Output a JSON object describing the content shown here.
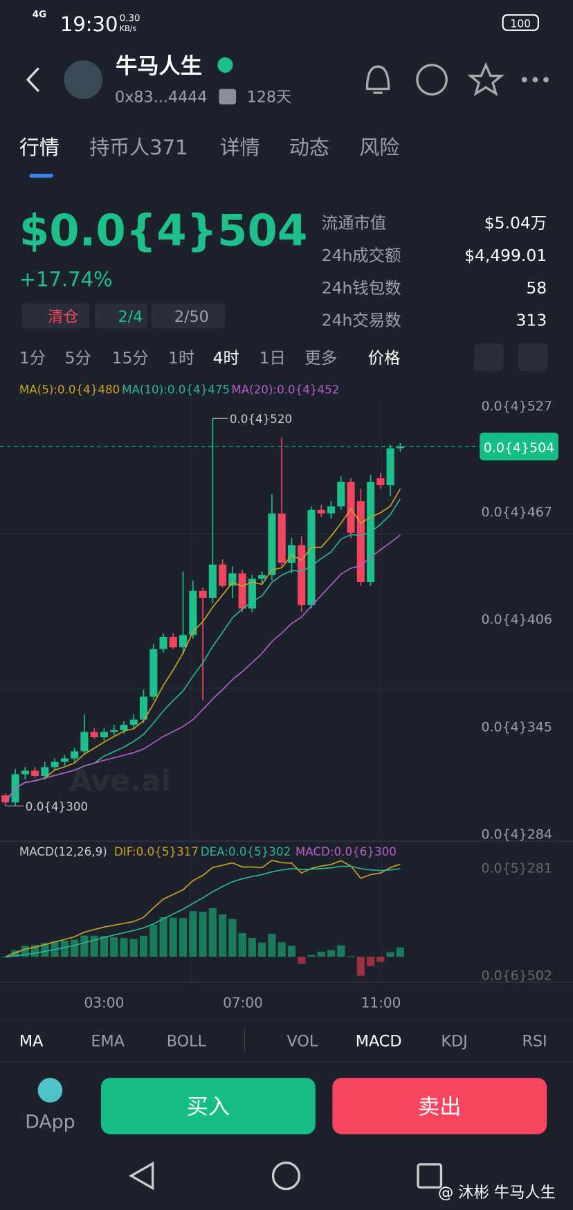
{
  "status_bar": {
    "network": "4G",
    "time": "19:30",
    "speed": "0.30",
    "speed_unit": "KB/s",
    "battery": "100"
  },
  "header": {
    "title": "牛马人生",
    "address": "0x83...4444",
    "age": "128天"
  },
  "tabs": [
    "行情",
    "持币人371",
    "详情",
    "动态",
    "风险"
  ],
  "price": {
    "value": "$0.0{4}504",
    "change": "+17.74%"
  },
  "badges": [
    "清仓",
    "2/4",
    "2/50"
  ],
  "stats": [
    {
      "label": "流通市值",
      "value": "$5.04万"
    },
    {
      "label": "24h成交额",
      "value": "$4,499.01"
    },
    {
      "label": "24h钱包数",
      "value": "58"
    },
    {
      "label": "24h交易数",
      "value": "313"
    }
  ],
  "intervals": [
    "1分",
    "5分",
    "15分",
    "1时",
    "4时",
    "1日",
    "更多",
    "价格"
  ],
  "chart_data": {
    "type": "candlestick",
    "ma_legend": [
      "MA(5):0.0{4}480",
      "MA(10):0.0{4}475",
      "MA(20):0.0{4}452"
    ],
    "ylim": [
      2.84e-05,
      5.27e-05
    ],
    "yticks": [
      {
        "value": 5.27e-05,
        "label": "0.0{4}527"
      },
      {
        "value": 4.67e-05,
        "label": "0.0{4}467"
      },
      {
        "value": 4.06e-05,
        "label": "0.0{4}406"
      },
      {
        "value": 3.45e-05,
        "label": "0.0{4}345"
      },
      {
        "value": 2.84e-05,
        "label": "0.0{4}284"
      }
    ],
    "current_price_label": "0.0{4}504",
    "high_label": "0.0{4}520",
    "low_label": "0.0{4}300",
    "up_color": "#1dbf8a",
    "down_color": "#f0455f",
    "open": [
      3.06e-05,
      3.02e-05,
      3.18e-05,
      3.2e-05,
      3.17e-05,
      3.22e-05,
      3.25e-05,
      3.27e-05,
      3.31e-05,
      3.42e-05,
      3.39e-05,
      3.42e-05,
      3.43e-05,
      3.46e-05,
      3.49e-05,
      3.62e-05,
      3.89e-05,
      3.96e-05,
      3.9e-05,
      3.97e-05,
      4.22e-05,
      4.18e-05,
      4.37e-05,
      4.25e-05,
      4.32e-05,
      4.12e-05,
      4.29e-05,
      4.31e-05,
      4.66e-05,
      4.38e-05,
      4.48e-05,
      4.14e-05,
      4.68e-05,
      4.66e-05,
      4.7e-05,
      4.84e-05,
      4.73e-05,
      4.27e-05,
      4.86e-05,
      4.82e-05,
      5.03e-05
    ],
    "high": [
      3.07e-05,
      3.21e-05,
      3.22e-05,
      3.22e-05,
      3.25e-05,
      3.27e-05,
      3.29e-05,
      3.33e-05,
      3.52e-05,
      3.44e-05,
      3.44e-05,
      3.46e-05,
      3.48e-05,
      3.52e-05,
      3.66e-05,
      3.92e-05,
      3.98e-05,
      3.98e-05,
      4.33e-05,
      4.28e-05,
      4.24e-05,
      5.2e-05,
      4.4e-05,
      4.36e-05,
      4.34e-05,
      4.31e-05,
      4.33e-05,
      4.77e-05,
      5.09e-05,
      4.52e-05,
      4.53e-05,
      4.7e-05,
      4.71e-05,
      4.73e-05,
      4.87e-05,
      4.86e-05,
      4.8e-05,
      4.88e-05,
      4.89e-05,
      5.05e-05,
      5.06e-05
    ],
    "low": [
      3e-05,
      3e-05,
      3.15e-05,
      3.16e-05,
      3.15e-05,
      3.2e-05,
      3.23e-05,
      3.25e-05,
      3.29e-05,
      3.38e-05,
      3.37e-05,
      3.4e-05,
      3.41e-05,
      3.44e-05,
      3.47e-05,
      3.6e-05,
      3.87e-05,
      3.89e-05,
      3.86e-05,
      3.95e-05,
      3.6e-05,
      4.15e-05,
      4.24e-05,
      4.18e-05,
      4.1e-05,
      4.1e-05,
      4.26e-05,
      4.28e-05,
      4.36e-05,
      4.32e-05,
      4.1e-05,
      4.12e-05,
      4.64e-05,
      4.63e-05,
      4.68e-05,
      4.52e-05,
      4.25e-05,
      4.25e-05,
      4.8e-05,
      4.76e-05,
      5.01e-05
    ],
    "close": [
      3.02e-05,
      3.18e-05,
      3.2e-05,
      3.17e-05,
      3.22e-05,
      3.25e-05,
      3.27e-05,
      3.31e-05,
      3.42e-05,
      3.39e-05,
      3.42e-05,
      3.43e-05,
      3.46e-05,
      3.49e-05,
      3.62e-05,
      3.89e-05,
      3.96e-05,
      3.9e-05,
      3.97e-05,
      4.22e-05,
      4.18e-05,
      4.37e-05,
      4.25e-05,
      4.32e-05,
      4.12e-05,
      4.29e-05,
      4.31e-05,
      4.66e-05,
      4.38e-05,
      4.48e-05,
      4.14e-05,
      4.68e-05,
      4.66e-05,
      4.7e-05,
      4.84e-05,
      4.55e-05,
      4.27e-05,
      4.84e-05,
      4.82e-05,
      5.03e-05,
      5.04e-05
    ],
    "x_labels": [
      "03:00",
      "07:00",
      "11:00"
    ],
    "watermark": "Ave.ai",
    "macd_legend": [
      "MACD(12,26,9)",
      "DIF:0.0{5}317",
      "DEA:0.0{5}302",
      "MACD:0.0{6}300"
    ],
    "macd_axis": [
      "0.0{5}281",
      "0.0{6}502"
    ]
  },
  "indicators": [
    "MA",
    "EMA",
    "BOLL",
    "VOL",
    "MACD",
    "KDJ",
    "RSI"
  ],
  "actions": {
    "dapp": "DApp",
    "buy": "买入",
    "sell": "卖出"
  },
  "footer_watermark": "@ 沐彬  牛马人生"
}
